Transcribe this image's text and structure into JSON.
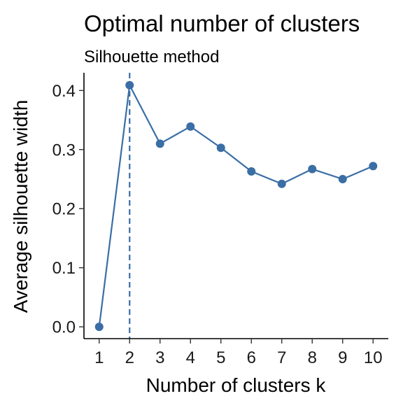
{
  "chart_data": {
    "type": "line",
    "title": "Optimal number of clusters",
    "subtitle": "Silhouette method",
    "xlabel": "Number of clusters k",
    "ylabel": "Average silhouette width",
    "x": [
      1,
      2,
      3,
      4,
      5,
      6,
      7,
      8,
      9,
      10
    ],
    "y": [
      0.0,
      0.409,
      0.31,
      0.339,
      0.303,
      0.263,
      0.242,
      0.267,
      0.25,
      0.272
    ],
    "x_ticks": [
      "1",
      "2",
      "3",
      "4",
      "5",
      "6",
      "7",
      "8",
      "9",
      "10"
    ],
    "y_ticks": [
      "0.0",
      "0.1",
      "0.2",
      "0.3",
      "0.4"
    ],
    "y_tick_values": [
      0.0,
      0.1,
      0.2,
      0.3,
      0.4
    ],
    "ylim": [
      -0.02,
      0.43
    ],
    "xlim": [
      0.5,
      10.5
    ],
    "optimal_k": 2,
    "grid": false,
    "line_color": "#3A6EA5"
  }
}
